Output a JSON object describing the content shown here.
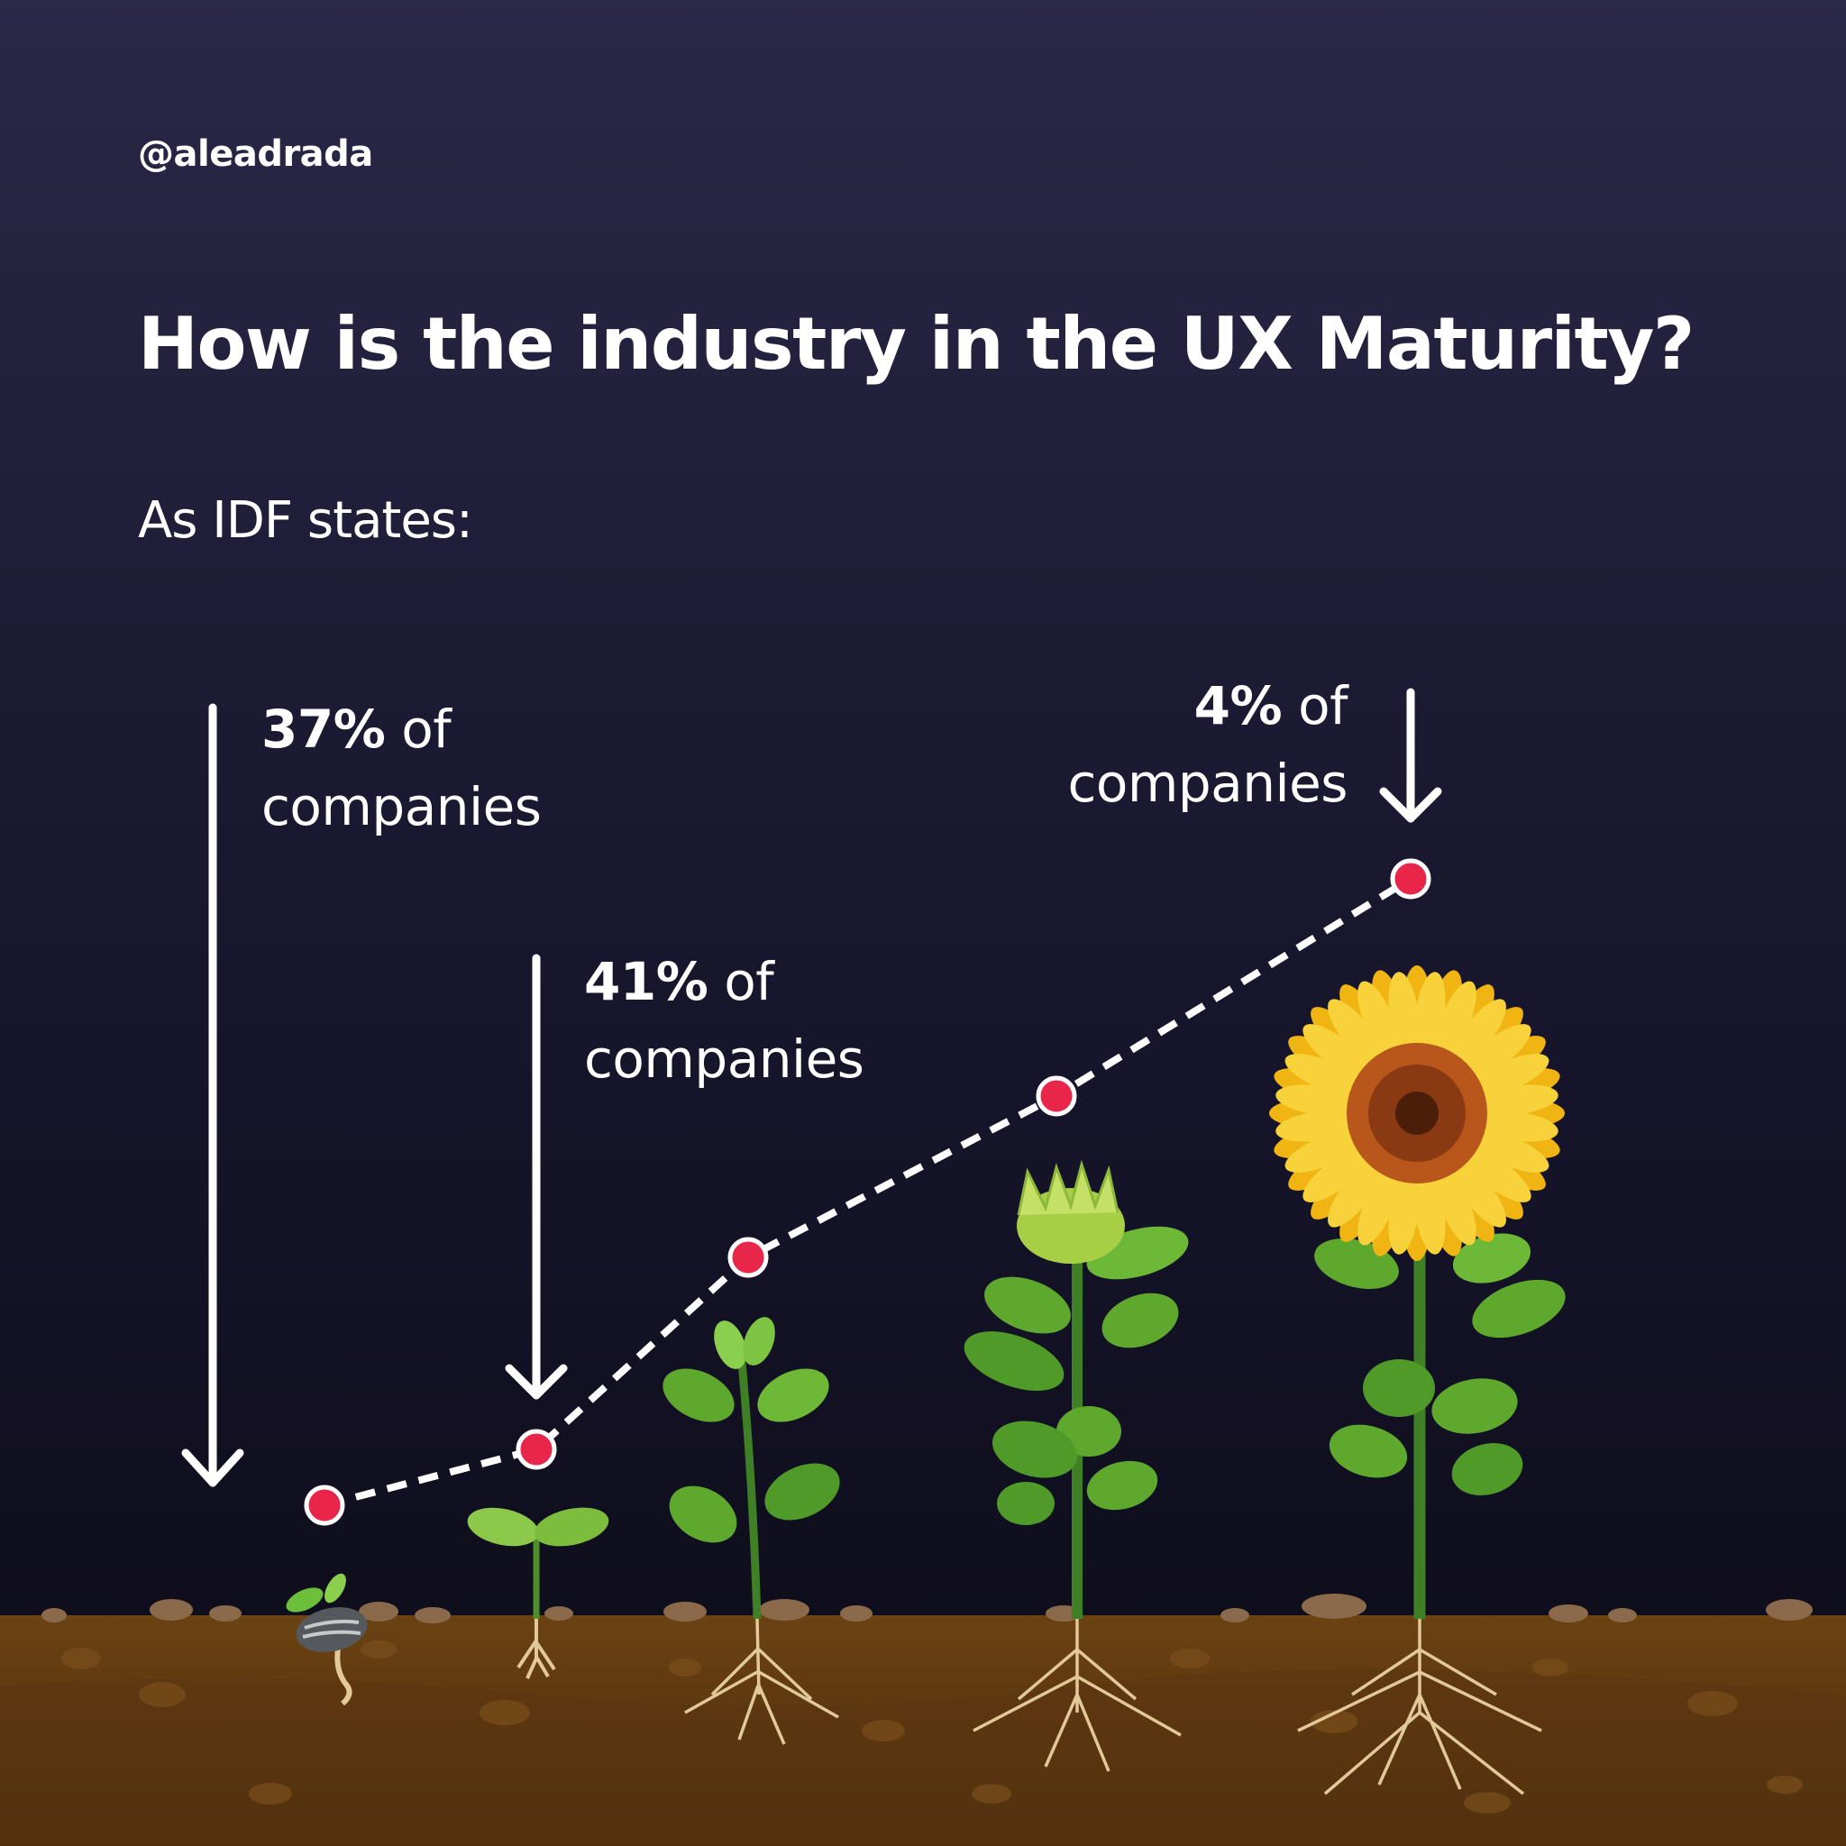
{
  "header": {
    "handle": "@aleadrada",
    "title": "How is the industry in the UX Maturity?",
    "subtitle": "As IDF states:"
  },
  "callouts": [
    {
      "percent": "37%",
      "of": "of",
      "line2": "companies"
    },
    {
      "percent": "41%",
      "of": "of",
      "line2": "companies"
    },
    {
      "percent": "4%",
      "of": "of",
      "line2": "companies"
    }
  ],
  "growth_stages": [
    {
      "stage": "seed",
      "icon": "sprouting-seed-icon"
    },
    {
      "stage": "seedling",
      "icon": "seedling-icon"
    },
    {
      "stage": "young plant",
      "icon": "young-plant-icon"
    },
    {
      "stage": "budding plant",
      "icon": "budding-plant-icon"
    },
    {
      "stage": "flowering sunflower",
      "icon": "sunflower-icon"
    }
  ],
  "colors": {
    "background_top": "#2b2848",
    "background_bottom": "#0f0e1c",
    "marker": "#e8264a",
    "soil": "#5a3610",
    "leaf": "#5fa82e",
    "petal": "#f5c518"
  }
}
